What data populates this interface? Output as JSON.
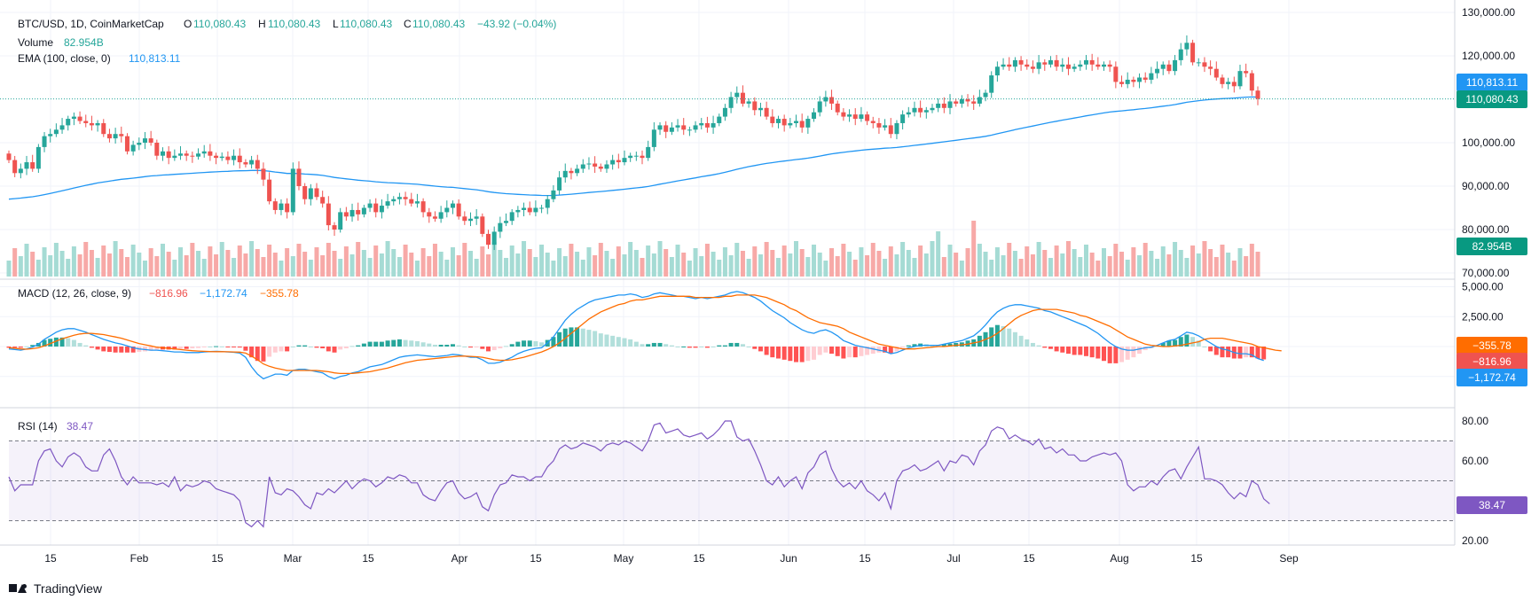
{
  "header": {
    "symbol": "BTC/USD, 1D, CoinMarketCap",
    "o_label": "O",
    "o_value": "110,080.43",
    "h_label": "H",
    "h_value": "110,080.43",
    "l_label": "L",
    "l_value": "110,080.43",
    "c_label": "C",
    "c_value": "110,080.43",
    "change": "−43.92 (−0.04%)",
    "volume_label": "Volume",
    "volume_value": "82.954B",
    "ema_label": "EMA (100, close, 0)",
    "ema_value": "110,813.11",
    "macd_label": "MACD (12, 26, close, 9)",
    "macd_hist": "−816.96",
    "macd_line": "−1,172.74",
    "macd_signal": "−355.78",
    "rsi_label": "RSI (14)",
    "rsi_value": "38.47"
  },
  "branding": {
    "logo_text": "TradingView"
  },
  "colors": {
    "up": "#26a69a",
    "down": "#ef5350",
    "ema": "#2196f3",
    "macd": "#2196f3",
    "signal": "#ff6d00",
    "rsi": "#7e57c2",
    "grid": "#f0f3fa",
    "text": "#131722"
  },
  "chart_data": {
    "type": "candlestick",
    "x_ticks": [
      "15",
      "Feb",
      "15",
      "Mar",
      "15",
      "Apr",
      "15",
      "May",
      "15",
      "Jun",
      "15",
      "Jul",
      "15",
      "Aug",
      "15",
      "Sep"
    ],
    "price_axis_labels": [
      "130,000.00",
      "120,000.00",
      "100,000.00",
      "90,000.00",
      "80,000.00",
      "70,000.00"
    ],
    "price_axis_values": [
      130000,
      120000,
      100000,
      90000,
      80000,
      70000
    ],
    "price_badges": {
      "ema": "110,813.11",
      "last": "110,080.43",
      "volume": "82.954B"
    },
    "macd_axis_labels": [
      "5,000.00",
      "2,500.00"
    ],
    "macd_axis_values": [
      5000,
      2500
    ],
    "macd_badges": {
      "signal": "−355.78",
      "hist": "−816.96",
      "macd": "−1,172.74"
    },
    "rsi_axis_labels": [
      "80.00",
      "60.00",
      "20.00"
    ],
    "rsi_axis_values": [
      80,
      60,
      20
    ],
    "rsi_bands": [
      70,
      50,
      30
    ],
    "closes": [
      96000,
      93000,
      94000,
      95500,
      94000,
      99000,
      101500,
      102000,
      103000,
      104000,
      105500,
      106000,
      105000,
      104500,
      104000,
      104500,
      102000,
      101000,
      102000,
      101500,
      98000,
      99500,
      100000,
      101000,
      100000,
      97000,
      98000,
      96500,
      97000,
      97500,
      97000,
      96800,
      97500,
      98000,
      97000,
      96500,
      96800,
      96000,
      97000,
      95500,
      95000,
      96000,
      94000,
      91500,
      86500,
      84500,
      86000,
      84000,
      94000,
      90000,
      87000,
      89500,
      87500,
      86000,
      81000,
      80000,
      84000,
      83000,
      84500,
      83500,
      85000,
      86000,
      84000,
      85500,
      86500,
      87000,
      87500,
      87000,
      86000,
      86500,
      84000,
      83000,
      82500,
      84000,
      85000,
      86000,
      83000,
      82000,
      82500,
      83000,
      79000,
      76500,
      79500,
      81500,
      82000,
      84000,
      84500,
      85000,
      84000,
      85000,
      85000,
      87000,
      89000,
      92000,
      93500,
      93000,
      94000,
      95000,
      95200,
      94500,
      94000,
      95000,
      96000,
      95500,
      96500,
      97000,
      97000,
      96500,
      99000,
      103000,
      104000,
      102500,
      103500,
      104000,
      103000,
      103000,
      104000,
      104500,
      103500,
      104500,
      106000,
      108000,
      110500,
      111500,
      109000,
      109500,
      107500,
      108000,
      106000,
      104500,
      105500,
      104000,
      104500,
      105000,
      103500,
      105500,
      107000,
      109500,
      110500,
      109000,
      107000,
      106000,
      106500,
      105500,
      106500,
      105000,
      104500,
      103500,
      104000,
      102000,
      104500,
      106500,
      107000,
      108000,
      107000,
      107500,
      108000,
      109000,
      108000,
      109500,
      109000,
      110000,
      109500,
      109000,
      110500,
      111500,
      115500,
      117500,
      118000,
      117500,
      119000,
      118000,
      117500,
      117000,
      118500,
      118000,
      119000,
      117500,
      118000,
      117000,
      117500,
      118000,
      119000,
      118000,
      117500,
      118000,
      117500,
      114000,
      113500,
      114500,
      114000,
      115000,
      114500,
      116000,
      117000,
      118000,
      116500,
      119000,
      121500,
      123000,
      118500,
      118500,
      117500,
      117000,
      115000,
      113500,
      114000,
      113000,
      116500,
      116000,
      112000,
      110080
    ],
    "ema_labels": "EMA(100) line",
    "rsi_values": [
      52,
      45,
      48,
      48,
      48,
      60,
      65,
      66,
      60,
      57,
      62,
      64,
      62,
      57,
      55,
      55,
      63,
      66,
      60,
      52,
      48,
      52,
      49,
      49,
      49,
      48,
      49,
      47,
      52,
      45,
      48,
      47,
      48,
      50,
      49,
      46,
      45,
      44,
      43,
      40,
      29,
      27,
      30,
      27,
      52,
      44,
      43,
      46,
      45,
      42,
      38,
      36,
      44,
      43,
      46,
      44,
      47,
      50,
      46,
      49,
      51,
      50,
      47,
      49,
      52,
      51,
      53,
      52,
      49,
      49,
      43,
      41,
      40,
      45,
      49,
      50,
      44,
      41,
      42,
      44,
      37,
      35,
      43,
      48,
      49,
      53,
      52,
      52,
      50,
      52,
      52,
      57,
      60,
      66,
      68,
      66,
      67,
      69,
      68,
      67,
      65,
      68,
      69,
      68,
      70,
      69,
      67,
      65,
      70,
      78,
      79,
      74,
      75,
      76,
      73,
      72,
      73,
      74,
      71,
      73,
      76,
      80,
      80,
      72,
      70,
      71,
      65,
      58,
      50,
      48,
      52,
      47,
      50,
      52,
      46,
      54,
      57,
      63,
      65,
      56,
      50,
      47,
      49,
      46,
      50,
      45,
      43,
      40,
      44,
      36,
      50,
      55,
      56,
      58,
      55,
      56,
      58,
      60,
      55,
      60,
      59,
      63,
      62,
      58,
      65,
      68,
      75,
      77,
      76,
      71,
      73,
      71,
      70,
      68,
      71,
      66,
      67,
      64,
      66,
      63,
      63,
      60,
      60,
      62,
      63,
      64,
      63,
      64,
      60,
      48,
      45,
      47,
      47,
      50,
      48,
      52,
      55,
      56,
      51,
      57,
      62,
      67,
      51,
      51,
      50,
      48,
      44,
      41,
      44,
      42,
      50,
      48,
      41,
      38.47
    ],
    "macd_line": [
      -200,
      -250,
      -300,
      -200,
      -50,
      200,
      600,
      900,
      1200,
      1400,
      1500,
      1500,
      1350,
      1200,
      1000,
      800,
      600,
      450,
      300,
      200,
      50,
      -100,
      -200,
      -250,
      -300,
      -300,
      -350,
      -400,
      -450,
      -450,
      -500,
      -500,
      -500,
      -450,
      -420,
      -400,
      -420,
      -450,
      -480,
      -550,
      -900,
      -1700,
      -2300,
      -2700,
      -2500,
      -2300,
      -2300,
      -2400,
      -2000,
      -1900,
      -1900,
      -2000,
      -2100,
      -2200,
      -2500,
      -2700,
      -2500,
      -2400,
      -2200,
      -2100,
      -1900,
      -1700,
      -1600,
      -1500,
      -1300,
      -1100,
      -900,
      -800,
      -750,
      -700,
      -750,
      -800,
      -850,
      -800,
      -750,
      -650,
      -700,
      -800,
      -900,
      -900,
      -1100,
      -1400,
      -1400,
      -1300,
      -1100,
      -900,
      -600,
      -400,
      -250,
      -150,
      -100,
      300,
      800,
      1500,
      2200,
      2700,
      3100,
      3400,
      3700,
      3900,
      4000,
      4100,
      4200,
      4300,
      4300,
      4400,
      4300,
      4100,
      4200,
      4400,
      4500,
      4400,
      4300,
      4200,
      4200,
      4100,
      4000,
      4100,
      4000,
      4100,
      4200,
      4300,
      4500,
      4600,
      4500,
      4300,
      4100,
      3800,
      3400,
      3000,
      2700,
      2400,
      2000,
      1700,
      1400,
      1200,
      1100,
      1300,
      1400,
      1200,
      900,
      500,
      300,
      100,
      0,
      -100,
      -200,
      -300,
      -400,
      -600,
      -500,
      -300,
      -100,
      0,
      100,
      100,
      100,
      100,
      200,
      300,
      400,
      500,
      700,
      900,
      1300,
      1800,
      2400,
      2900,
      3200,
      3400,
      3500,
      3500,
      3400,
      3300,
      3200,
      3000,
      2900,
      2700,
      2500,
      2300,
      2100,
      1900,
      1700,
      1400,
      1100,
      700,
      300,
      0,
      -200,
      -300,
      -300,
      -200,
      -100,
      -50,
      100,
      300,
      500,
      600,
      900,
      1200,
      1100,
      900,
      600,
      300,
      0,
      -200,
      -300,
      -500,
      -600,
      -600,
      -700,
      -1000,
      -1172.74
    ],
    "macd_signal": [
      -100,
      -150,
      -200,
      -220,
      -180,
      -100,
      50,
      250,
      450,
      650,
      800,
      950,
      1050,
      1100,
      1100,
      1050,
      1000,
      900,
      800,
      700,
      550,
      400,
      250,
      150,
      50,
      -50,
      -100,
      -150,
      -200,
      -250,
      -300,
      -350,
      -380,
      -400,
      -420,
      -430,
      -430,
      -440,
      -450,
      -470,
      -550,
      -800,
      -1100,
      -1450,
      -1650,
      -1800,
      -1900,
      -2000,
      -2000,
      -2000,
      -2000,
      -2000,
      -2000,
      -2050,
      -2100,
      -2200,
      -2250,
      -2250,
      -2250,
      -2200,
      -2150,
      -2100,
      -2000,
      -1900,
      -1800,
      -1650,
      -1500,
      -1350,
      -1250,
      -1150,
      -1100,
      -1050,
      -1000,
      -950,
      -900,
      -850,
      -800,
      -800,
      -820,
      -850,
      -900,
      -1000,
      -1100,
      -1150,
      -1150,
      -1100,
      -1000,
      -900,
      -750,
      -600,
      -450,
      -250,
      0,
      300,
      700,
      1100,
      1500,
      1900,
      2300,
      2600,
      2900,
      3100,
      3300,
      3500,
      3600,
      3800,
      3900,
      3900,
      4000,
      4100,
      4200,
      4200,
      4200,
      4200,
      4200,
      4200,
      4100,
      4100,
      4100,
      4100,
      4100,
      4200,
      4200,
      4300,
      4300,
      4300,
      4300,
      4200,
      4100,
      3900,
      3700,
      3500,
      3200,
      3000,
      2700,
      2400,
      2200,
      2000,
      1900,
      1800,
      1700,
      1500,
      1200,
      1000,
      800,
      600,
      400,
      200,
      100,
      0,
      -100,
      -200,
      -200,
      -200,
      -150,
      -100,
      -50,
      0,
      0,
      50,
      100,
      150,
      200,
      300,
      400,
      600,
      800,
      1100,
      1500,
      1900,
      2300,
      2600,
      2800,
      3000,
      3100,
      3100,
      3100,
      3100,
      3000,
      2900,
      2800,
      2600,
      2500,
      2300,
      2100,
      1900,
      1700,
      1400,
      1100,
      800,
      600,
      400,
      200,
      100,
      50,
      0,
      0,
      50,
      100,
      200,
      300,
      400,
      600,
      700,
      700,
      700,
      600,
      500,
      400,
      300,
      200,
      0,
      -100,
      -200,
      -300,
      -355.78
    ]
  }
}
